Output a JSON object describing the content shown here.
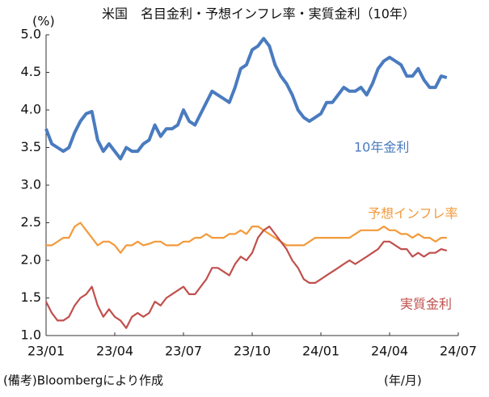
{
  "chart_data": {
    "type": "line",
    "title": "米国　名目金利・予想インフレ率・実質金利（10年）",
    "y_unit_label": "(%)",
    "x_unit_label": "(年/月)",
    "note": "(備考)Bloombergにより作成",
    "xlim": [
      0,
      18
    ],
    "xticks": [
      {
        "value": 0,
        "label": "23/01"
      },
      {
        "value": 3,
        "label": "23/04"
      },
      {
        "value": 6,
        "label": "23/07"
      },
      {
        "value": 9,
        "label": "23/10"
      },
      {
        "value": 12,
        "label": "24/01"
      },
      {
        "value": 15,
        "label": "24/04"
      },
      {
        "value": 18,
        "label": "24/07"
      }
    ],
    "ylim": [
      1.0,
      5.0
    ],
    "yticks": [
      {
        "value": 1,
        "label": "1.0"
      },
      {
        "value": 1.5,
        "label": "1.5"
      },
      {
        "value": 2,
        "label": "2.0"
      },
      {
        "value": 2.5,
        "label": "2.5"
      },
      {
        "value": 3,
        "label": "3.0"
      },
      {
        "value": 3.5,
        "label": "3.5"
      },
      {
        "value": 4,
        "label": "4.0"
      },
      {
        "value": 4.5,
        "label": "4.5"
      },
      {
        "value": 5,
        "label": "5.0"
      }
    ],
    "grid": false,
    "x": [
      0,
      0.25,
      0.5,
      0.75,
      1,
      1.25,
      1.5,
      1.75,
      2,
      2.25,
      2.5,
      2.75,
      3,
      3.25,
      3.5,
      3.75,
      4,
      4.25,
      4.5,
      4.75,
      5,
      5.25,
      5.5,
      5.75,
      6,
      6.25,
      6.5,
      6.75,
      7,
      7.25,
      7.5,
      7.75,
      8,
      8.25,
      8.5,
      8.75,
      9,
      9.25,
      9.5,
      9.75,
      10,
      10.25,
      10.5,
      10.75,
      11,
      11.25,
      11.5,
      11.75,
      12,
      12.25,
      12.5,
      12.75,
      13,
      13.25,
      13.5,
      13.75,
      14,
      14.25,
      14.5,
      14.75,
      15,
      15.25,
      15.5,
      15.75,
      16,
      16.25,
      16.5,
      16.75,
      17,
      17.25,
      17.5
    ],
    "series": [
      {
        "name": "10年金利",
        "color": "#4a7bbf",
        "width": 4,
        "values": [
          3.75,
          3.55,
          3.5,
          3.45,
          3.5,
          3.7,
          3.85,
          3.95,
          3.98,
          3.6,
          3.45,
          3.55,
          3.45,
          3.35,
          3.5,
          3.45,
          3.45,
          3.55,
          3.6,
          3.8,
          3.65,
          3.75,
          3.75,
          3.8,
          4.0,
          3.85,
          3.8,
          3.95,
          4.1,
          4.25,
          4.2,
          4.15,
          4.1,
          4.3,
          4.55,
          4.6,
          4.8,
          4.85,
          4.95,
          4.85,
          4.6,
          4.45,
          4.35,
          4.2,
          4.0,
          3.9,
          3.85,
          3.9,
          3.95,
          4.1,
          4.1,
          4.2,
          4.3,
          4.25,
          4.25,
          4.3,
          4.2,
          4.35,
          4.55,
          4.65,
          4.7,
          4.65,
          4.6,
          4.45,
          4.45,
          4.55,
          4.4,
          4.3,
          4.3,
          4.45,
          4.43
        ]
      },
      {
        "name": "予想インフレ率",
        "color": "#f39a3c",
        "width": 2.2,
        "values": [
          2.2,
          2.2,
          2.25,
          2.3,
          2.3,
          2.45,
          2.5,
          2.4,
          2.3,
          2.2,
          2.25,
          2.25,
          2.2,
          2.1,
          2.2,
          2.2,
          2.25,
          2.2,
          2.22,
          2.25,
          2.25,
          2.2,
          2.2,
          2.2,
          2.25,
          2.25,
          2.3,
          2.3,
          2.35,
          2.3,
          2.3,
          2.3,
          2.35,
          2.35,
          2.4,
          2.35,
          2.45,
          2.45,
          2.4,
          2.35,
          2.3,
          2.25,
          2.2,
          2.2,
          2.2,
          2.2,
          2.25,
          2.3,
          2.3,
          2.3,
          2.3,
          2.3,
          2.3,
          2.3,
          2.35,
          2.4,
          2.4,
          2.4,
          2.4,
          2.45,
          2.4,
          2.4,
          2.35,
          2.35,
          2.3,
          2.35,
          2.3,
          2.3,
          2.25,
          2.3,
          2.3
        ]
      },
      {
        "name": "実質金利",
        "color": "#c0504d",
        "width": 2.2,
        "values": [
          1.45,
          1.3,
          1.2,
          1.2,
          1.25,
          1.4,
          1.5,
          1.55,
          1.65,
          1.4,
          1.25,
          1.35,
          1.25,
          1.2,
          1.1,
          1.25,
          1.3,
          1.25,
          1.3,
          1.45,
          1.4,
          1.5,
          1.55,
          1.6,
          1.65,
          1.55,
          1.55,
          1.65,
          1.75,
          1.9,
          1.9,
          1.85,
          1.8,
          1.95,
          2.05,
          2.0,
          2.1,
          2.3,
          2.4,
          2.45,
          2.35,
          2.25,
          2.15,
          2.0,
          1.9,
          1.75,
          1.7,
          1.7,
          1.75,
          1.8,
          1.85,
          1.9,
          1.95,
          2.0,
          1.95,
          2.0,
          2.05,
          2.1,
          2.15,
          2.25,
          2.25,
          2.2,
          2.15,
          2.15,
          2.05,
          2.1,
          2.05,
          2.1,
          2.1,
          2.15,
          2.13
        ]
      }
    ]
  }
}
